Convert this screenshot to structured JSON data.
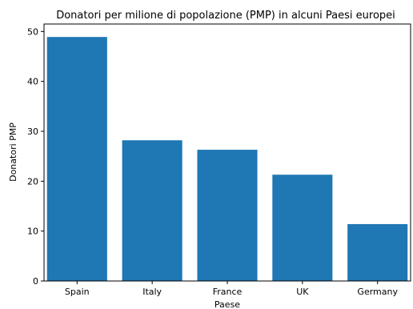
{
  "chart_data": {
    "type": "bar",
    "title": "Donatori per milione di popolazione (PMP) in alcuni Paesi europei",
    "xlabel": "Paese",
    "ylabel": "Donatori PMP",
    "categories": [
      "Spain",
      "Italy",
      "France",
      "UK",
      "Germany"
    ],
    "values": [
      48.9,
      28.2,
      26.3,
      21.3,
      11.4
    ],
    "ylim": [
      0,
      51.5
    ],
    "yticks": [
      "0",
      "10",
      "20",
      "30",
      "40",
      "50"
    ],
    "grid": false,
    "legend": "none",
    "bar_color": "#1f77b4"
  }
}
